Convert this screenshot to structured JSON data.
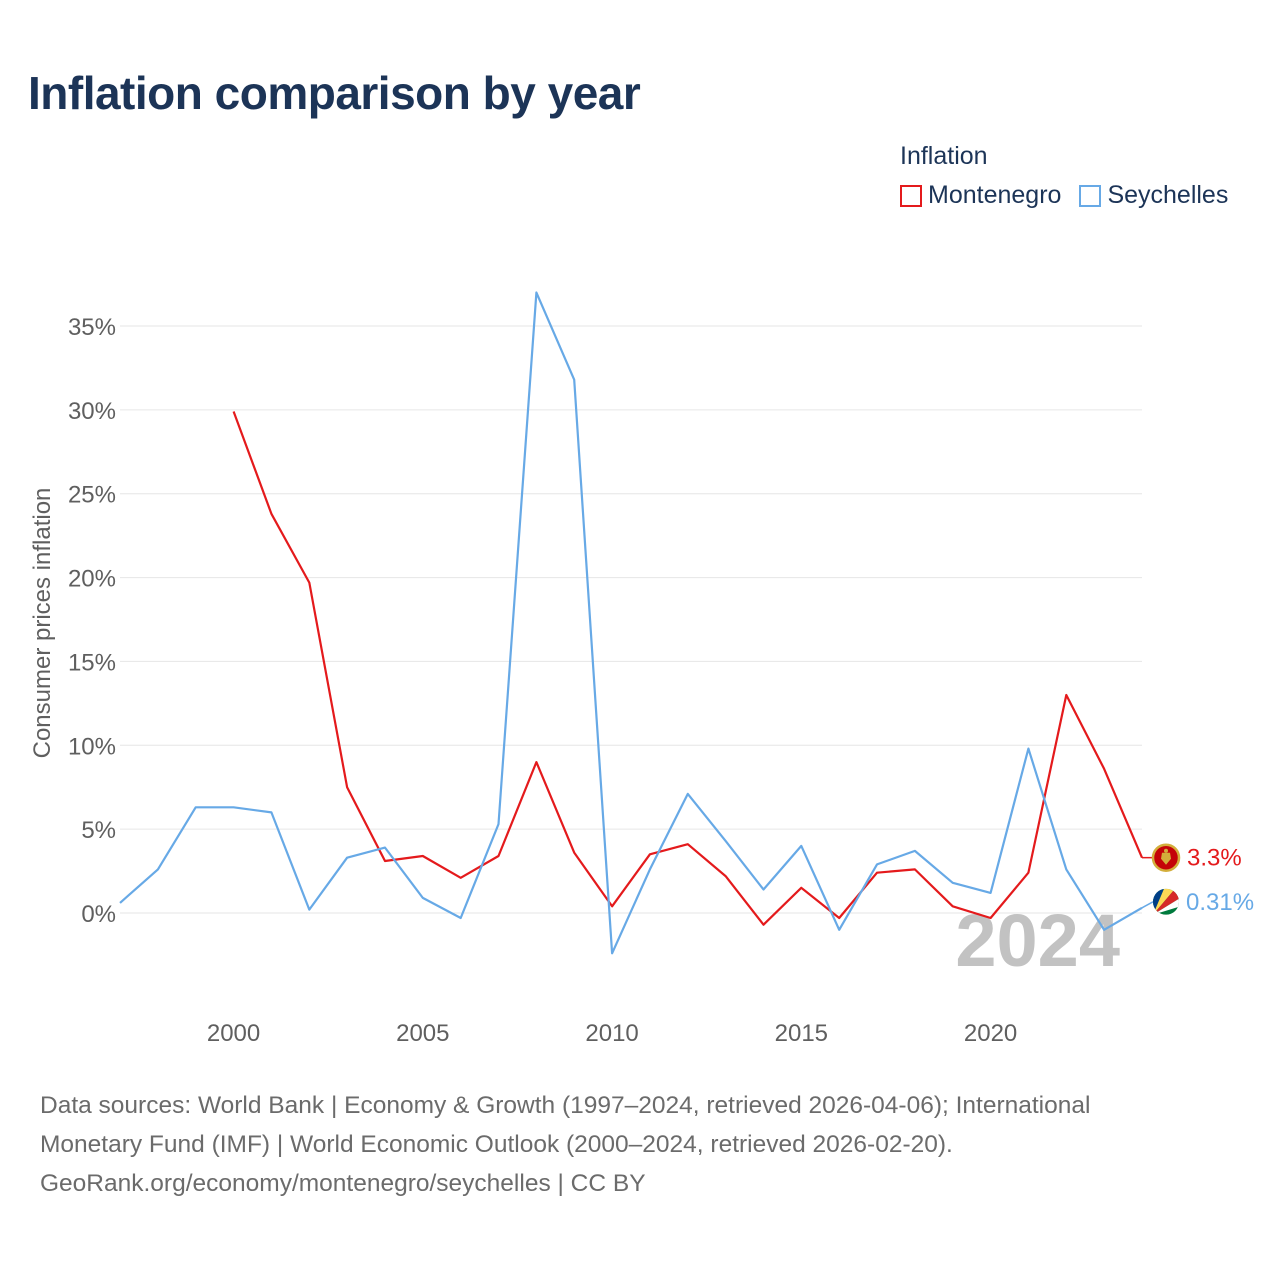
{
  "title": "Inflation comparison by year",
  "legend": {
    "title": "Inflation",
    "items": [
      {
        "label": "Montenegro",
        "color": "#e41a1c"
      },
      {
        "label": "Seychelles",
        "color": "#67a9e6"
      }
    ]
  },
  "chart_data": {
    "type": "line",
    "title": "Inflation comparison by year",
    "xlabel": "",
    "ylabel": "Consumer prices inflation",
    "xlim": [
      1997,
      2024
    ],
    "ylim": [
      -5,
      37
    ],
    "grid": true,
    "y_ticks": [
      0,
      5,
      10,
      15,
      20,
      25,
      30,
      35
    ],
    "y_tick_labels": [
      "0%",
      "5%",
      "10%",
      "15%",
      "20%",
      "25%",
      "30%",
      "35%"
    ],
    "x_ticks": [
      2000,
      2005,
      2010,
      2015,
      2020
    ],
    "x_tick_labels": [
      "2000",
      "2005",
      "2010",
      "2015",
      "2020"
    ],
    "year_watermark": "2024",
    "series": [
      {
        "name": "Montenegro",
        "color": "#e41a1c",
        "x": [
          2000,
          2001,
          2002,
          2003,
          2004,
          2005,
          2006,
          2007,
          2008,
          2009,
          2010,
          2011,
          2012,
          2013,
          2014,
          2015,
          2016,
          2017,
          2018,
          2019,
          2020,
          2021,
          2022,
          2023,
          2024
        ],
        "values": [
          29.9,
          23.8,
          19.7,
          7.5,
          3.1,
          3.4,
          2.1,
          3.4,
          9.0,
          3.6,
          0.4,
          3.5,
          4.1,
          2.2,
          -0.7,
          1.5,
          -0.3,
          2.4,
          2.6,
          0.4,
          -0.3,
          2.4,
          13.0,
          8.6,
          3.3
        ],
        "end_label": "3.3%"
      },
      {
        "name": "Seychelles",
        "color": "#67a9e6",
        "x": [
          1997,
          1998,
          1999,
          2000,
          2001,
          2002,
          2003,
          2004,
          2005,
          2006,
          2007,
          2008,
          2009,
          2010,
          2011,
          2012,
          2013,
          2014,
          2015,
          2016,
          2017,
          2018,
          2019,
          2020,
          2021,
          2022,
          2023,
          2024
        ],
        "values": [
          0.6,
          2.6,
          6.3,
          6.3,
          6.0,
          0.2,
          3.3,
          3.9,
          0.9,
          -0.3,
          5.3,
          37.0,
          31.8,
          -2.4,
          2.6,
          7.1,
          4.3,
          1.4,
          4.0,
          -1.0,
          2.9,
          3.7,
          1.8,
          1.2,
          9.8,
          2.6,
          -1.0,
          0.31
        ],
        "end_label": "0.31%"
      }
    ]
  },
  "sources": {
    "line1": "Data sources: World Bank | Economy & Growth (1997–2024, retrieved 2026-04-06); International",
    "line2": "Monetary Fund (IMF) | World Economic Outlook (2000–2024, retrieved 2026-02-20).",
    "line3": "GeoRank.org/economy/montenegro/seychelles | CC BY"
  }
}
